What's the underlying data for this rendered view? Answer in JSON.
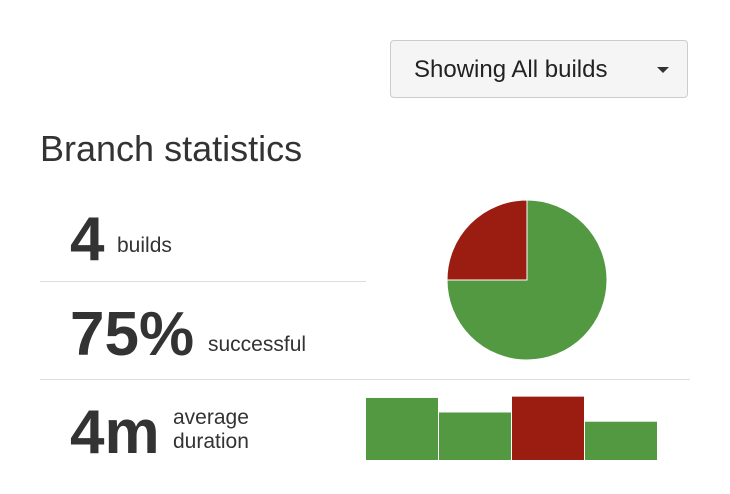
{
  "filter": {
    "label": "Showing All builds"
  },
  "heading": "Branch statistics",
  "stats": {
    "builds": {
      "number": "4",
      "label": "builds"
    },
    "success": {
      "number": "75%",
      "label": "successful"
    },
    "duration": {
      "number": "4m",
      "label_lines": [
        "average",
        "duration"
      ]
    }
  },
  "pie": {
    "values": [
      3,
      1
    ],
    "colors": [
      "#529942",
      "#9b1d12"
    ]
  },
  "bars": {
    "values": [
      4.7,
      3.6,
      4.8,
      2.9
    ],
    "colors": [
      "#529942",
      "#529942",
      "#9b1d12",
      "#529942"
    ]
  }
}
